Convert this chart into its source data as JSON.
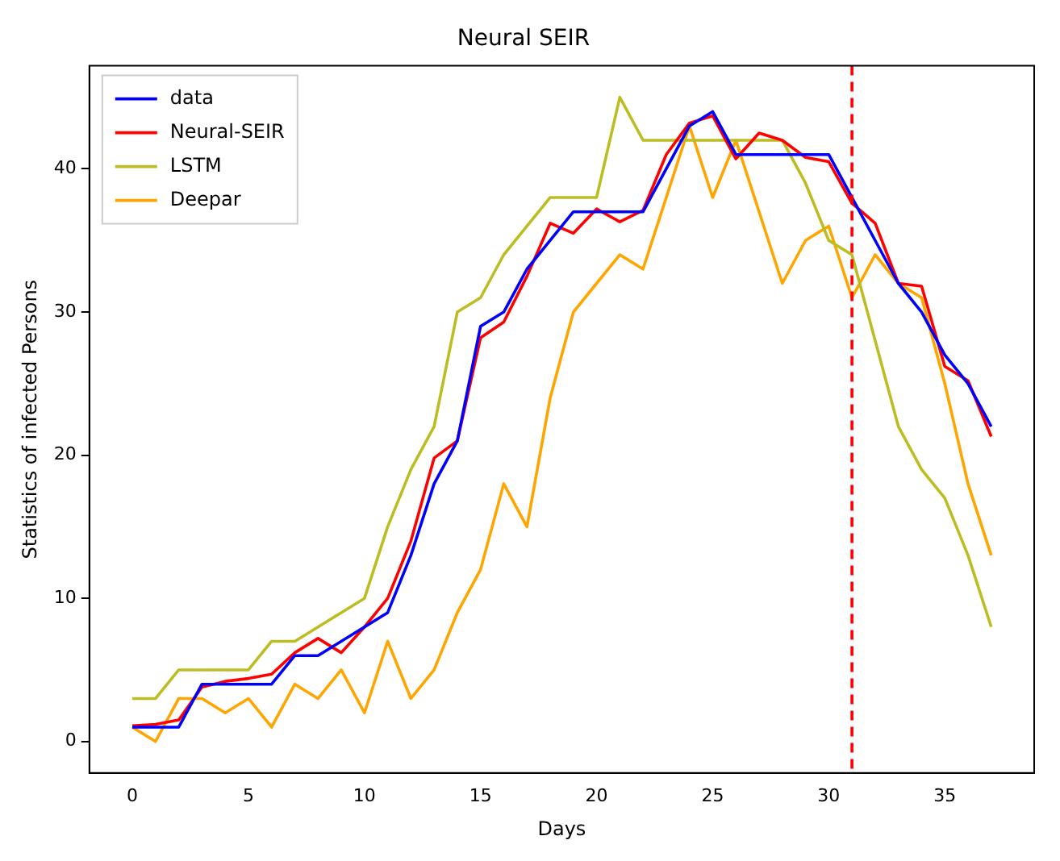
{
  "chart_data": {
    "type": "line",
    "title": "Neural SEIR",
    "xlabel": "Days",
    "ylabel": "Statistics of infected Persons",
    "x": [
      0,
      1,
      2,
      3,
      4,
      5,
      6,
      7,
      8,
      9,
      10,
      11,
      12,
      13,
      14,
      15,
      16,
      17,
      18,
      19,
      20,
      21,
      22,
      23,
      24,
      25,
      26,
      27,
      28,
      29,
      30,
      31,
      32,
      33,
      34,
      35,
      36,
      37
    ],
    "series": [
      {
        "name": "data",
        "color": "#0000ff",
        "values": [
          1,
          1,
          1,
          4,
          4,
          4,
          4,
          6,
          6,
          7,
          8,
          9,
          13,
          18,
          21,
          29,
          30,
          33,
          35,
          37,
          37,
          37,
          37,
          40,
          43,
          44,
          41,
          41,
          41,
          41,
          41,
          38,
          35,
          32,
          30,
          27,
          25,
          22
        ]
      },
      {
        "name": "Neural-SEIR",
        "color": "#ff0000",
        "values": [
          1.1,
          1.2,
          1.5,
          3.8,
          4.2,
          4.4,
          4.7,
          6.2,
          7.2,
          6.2,
          8,
          10,
          14,
          19.8,
          21,
          28.2,
          29.3,
          32.5,
          36.2,
          35.5,
          37.2,
          36.3,
          37.1,
          41,
          43.2,
          43.7,
          40.7,
          42.5,
          42,
          40.8,
          40.5,
          37.6,
          36.2,
          32,
          31.8,
          26.2,
          25.2,
          21.3
        ]
      },
      {
        "name": "LSTM",
        "color": "#bcbd22",
        "values": [
          3,
          3,
          5,
          5,
          5,
          5,
          7,
          7,
          8,
          9,
          10,
          15,
          19,
          22,
          30,
          31,
          34,
          36,
          38,
          38,
          38,
          45,
          42,
          42,
          42,
          42,
          42,
          42,
          42,
          39,
          35,
          34,
          28,
          22,
          19,
          17,
          13,
          8
        ]
      },
      {
        "name": "Deepar",
        "color": "#ffa500",
        "values": [
          1,
          0,
          3,
          3,
          2,
          3,
          1,
          4,
          3,
          5,
          2,
          7,
          3,
          5,
          9,
          12,
          18,
          15,
          24,
          30,
          32,
          34,
          33,
          38,
          43,
          38,
          42,
          37,
          32,
          35,
          36,
          31,
          34,
          32,
          31,
          25,
          18,
          13
        ]
      }
    ],
    "xlim": [
      -1.85,
      38.85
    ],
    "xticks": [
      0,
      5,
      10,
      15,
      20,
      25,
      30,
      35
    ],
    "ylim": [
      -2.2,
      47.2
    ],
    "yticks": [
      0,
      10,
      20,
      30,
      40
    ],
    "ref_lines": [
      {
        "axis": "x",
        "value": 31,
        "color": "#ff0000",
        "line_style": "dashed"
      }
    ],
    "grid": false,
    "legend": "top left",
    "marker": "none",
    "line_style": "solid"
  }
}
